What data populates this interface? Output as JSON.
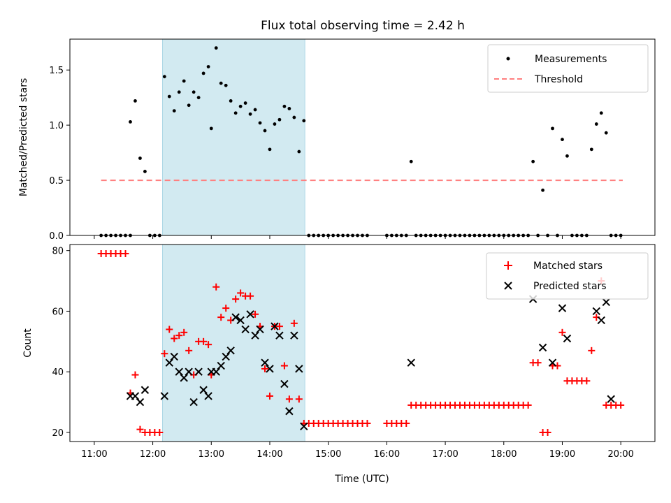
{
  "chart_data": [
    {
      "type": "scatter",
      "title": "Flux total observing time = 2.42 h",
      "ylabel": "Matched/Predicted stars",
      "xlabel": "",
      "ylim": [
        0,
        1.78
      ],
      "yticks": [
        "0.0",
        "0.5",
        "1.0",
        "1.5"
      ],
      "ytick_values": [
        0,
        0.5,
        1.0,
        1.5
      ],
      "highlight_span": [
        "12:10",
        "14:36"
      ],
      "highlight_color": "#add8e6",
      "legend": {
        "placement": "upper right",
        "entries": [
          "Measurements",
          "Threshold"
        ]
      },
      "threshold": {
        "name": "Threshold",
        "value": 0.5,
        "x_range": [
          "11:07",
          "20:02"
        ],
        "color": "#ff7f7f",
        "style": "dashed"
      },
      "series": [
        {
          "name": "Measurements",
          "color": "#000000",
          "marker": "dot",
          "points": [
            [
              "11:07",
              0
            ],
            [
              "11:12",
              0
            ],
            [
              "11:17",
              0
            ],
            [
              "11:22",
              0
            ],
            [
              "11:27",
              0
            ],
            [
              "11:32",
              0
            ],
            [
              "11:37",
              0
            ],
            [
              "11:37",
              1.03
            ],
            [
              "11:42",
              1.22
            ],
            [
              "11:47",
              0.7
            ],
            [
              "11:52",
              0.58
            ],
            [
              "11:57",
              0
            ],
            [
              "12:02",
              0
            ],
            [
              "12:07",
              0
            ],
            [
              "12:12",
              1.44
            ],
            [
              "12:17",
              1.26
            ],
            [
              "12:22",
              1.13
            ],
            [
              "12:27",
              1.3
            ],
            [
              "12:32",
              1.4
            ],
            [
              "12:37",
              1.18
            ],
            [
              "12:42",
              1.3
            ],
            [
              "12:47",
              1.25
            ],
            [
              "12:52",
              1.47
            ],
            [
              "12:57",
              1.53
            ],
            [
              "13:00",
              0.97
            ],
            [
              "13:05",
              1.7
            ],
            [
              "13:10",
              1.38
            ],
            [
              "13:15",
              1.36
            ],
            [
              "13:20",
              1.22
            ],
            [
              "13:25",
              1.11
            ],
            [
              "13:30",
              1.17
            ],
            [
              "13:35",
              1.2
            ],
            [
              "13:40",
              1.1
            ],
            [
              "13:45",
              1.14
            ],
            [
              "13:50",
              1.02
            ],
            [
              "13:55",
              0.95
            ],
            [
              "14:00",
              0.78
            ],
            [
              "14:05",
              1.01
            ],
            [
              "14:10",
              1.05
            ],
            [
              "14:15",
              1.17
            ],
            [
              "14:20",
              1.15
            ],
            [
              "14:25",
              1.07
            ],
            [
              "14:30",
              0.76
            ],
            [
              "14:35",
              1.04
            ],
            [
              "14:40",
              0
            ],
            [
              "14:45",
              0
            ],
            [
              "14:50",
              0
            ],
            [
              "14:55",
              0
            ],
            [
              "15:00",
              0
            ],
            [
              "15:05",
              0
            ],
            [
              "15:10",
              0
            ],
            [
              "15:15",
              0
            ],
            [
              "15:20",
              0
            ],
            [
              "15:25",
              0
            ],
            [
              "15:30",
              0
            ],
            [
              "15:35",
              0
            ],
            [
              "15:40",
              0
            ],
            [
              "16:00",
              0
            ],
            [
              "16:05",
              0
            ],
            [
              "16:10",
              0
            ],
            [
              "16:15",
              0
            ],
            [
              "16:20",
              0
            ],
            [
              "16:25",
              0.67
            ],
            [
              "16:30",
              0
            ],
            [
              "16:35",
              0
            ],
            [
              "16:40",
              0
            ],
            [
              "16:45",
              0
            ],
            [
              "16:50",
              0
            ],
            [
              "16:55",
              0
            ],
            [
              "17:00",
              0
            ],
            [
              "17:05",
              0
            ],
            [
              "17:10",
              0
            ],
            [
              "17:15",
              0
            ],
            [
              "17:20",
              0
            ],
            [
              "17:25",
              0
            ],
            [
              "17:30",
              0
            ],
            [
              "17:35",
              0
            ],
            [
              "17:40",
              0
            ],
            [
              "17:45",
              0
            ],
            [
              "17:50",
              0
            ],
            [
              "17:55",
              0
            ],
            [
              "18:00",
              0
            ],
            [
              "18:05",
              0
            ],
            [
              "18:10",
              0
            ],
            [
              "18:15",
              0
            ],
            [
              "18:20",
              0
            ],
            [
              "18:25",
              0
            ],
            [
              "18:30",
              0.67
            ],
            [
              "18:35",
              0
            ],
            [
              "18:40",
              0.41
            ],
            [
              "18:45",
              0
            ],
            [
              "18:50",
              0.97
            ],
            [
              "18:55",
              0
            ],
            [
              "19:00",
              0.87
            ],
            [
              "19:05",
              0.72
            ],
            [
              "19:10",
              0
            ],
            [
              "19:15",
              0
            ],
            [
              "19:20",
              0
            ],
            [
              "19:25",
              0
            ],
            [
              "19:30",
              0.78
            ],
            [
              "19:35",
              1.01
            ],
            [
              "19:40",
              1.11
            ],
            [
              "19:45",
              0.93
            ],
            [
              "19:50",
              0
            ],
            [
              "19:55",
              0
            ],
            [
              "20:00",
              0
            ]
          ]
        }
      ]
    },
    {
      "type": "scatter",
      "title": "",
      "xlabel": "Time (UTC)",
      "ylabel": "Count",
      "ylim": [
        17,
        82
      ],
      "yticks": [
        "20",
        "40",
        "60",
        "80"
      ],
      "ytick_values": [
        20,
        40,
        60,
        80
      ],
      "xlim": [
        "10:35",
        "20:35"
      ],
      "xticks": [
        "11:00",
        "12:00",
        "13:00",
        "14:00",
        "15:00",
        "16:00",
        "17:00",
        "18:00",
        "19:00",
        "20:00"
      ],
      "highlight_span": [
        "12:10",
        "14:36"
      ],
      "highlight_color": "#add8e6",
      "legend": {
        "placement": "upper right",
        "entries": [
          "Matched stars",
          "Predicted stars"
        ]
      },
      "series": [
        {
          "name": "Matched stars",
          "color": "#ff0000",
          "marker": "plus",
          "points": [
            [
              "11:07",
              79
            ],
            [
              "11:12",
              79
            ],
            [
              "11:17",
              79
            ],
            [
              "11:22",
              79
            ],
            [
              "11:27",
              79
            ],
            [
              "11:32",
              79
            ],
            [
              "11:37",
              33
            ],
            [
              "11:42",
              39
            ],
            [
              "11:47",
              21
            ],
            [
              "11:52",
              20
            ],
            [
              "11:57",
              20
            ],
            [
              "12:02",
              20
            ],
            [
              "12:07",
              20
            ],
            [
              "12:12",
              46
            ],
            [
              "12:17",
              54
            ],
            [
              "12:22",
              51
            ],
            [
              "12:27",
              52
            ],
            [
              "12:32",
              53
            ],
            [
              "12:37",
              47
            ],
            [
              "12:42",
              39
            ],
            [
              "12:47",
              50
            ],
            [
              "12:52",
              50
            ],
            [
              "12:57",
              49
            ],
            [
              "13:00",
              39
            ],
            [
              "13:05",
              68
            ],
            [
              "13:10",
              58
            ],
            [
              "13:15",
              61
            ],
            [
              "13:20",
              57
            ],
            [
              "13:25",
              64
            ],
            [
              "13:30",
              66
            ],
            [
              "13:35",
              65
            ],
            [
              "13:40",
              65
            ],
            [
              "13:45",
              59
            ],
            [
              "13:50",
              55
            ],
            [
              "13:55",
              41
            ],
            [
              "14:00",
              32
            ],
            [
              "14:05",
              55
            ],
            [
              "14:10",
              55
            ],
            [
              "14:15",
              42
            ],
            [
              "14:20",
              31
            ],
            [
              "14:25",
              56
            ],
            [
              "14:30",
              31
            ],
            [
              "14:35",
              23
            ],
            [
              "14:40",
              23
            ],
            [
              "14:45",
              23
            ],
            [
              "14:50",
              23
            ],
            [
              "14:55",
              23
            ],
            [
              "15:00",
              23
            ],
            [
              "15:05",
              23
            ],
            [
              "15:10",
              23
            ],
            [
              "15:15",
              23
            ],
            [
              "15:20",
              23
            ],
            [
              "15:25",
              23
            ],
            [
              "15:30",
              23
            ],
            [
              "15:35",
              23
            ],
            [
              "15:40",
              23
            ],
            [
              "16:00",
              23
            ],
            [
              "16:05",
              23
            ],
            [
              "16:10",
              23
            ],
            [
              "16:15",
              23
            ],
            [
              "16:20",
              23
            ],
            [
              "16:25",
              29
            ],
            [
              "16:30",
              29
            ],
            [
              "16:35",
              29
            ],
            [
              "16:40",
              29
            ],
            [
              "16:45",
              29
            ],
            [
              "16:50",
              29
            ],
            [
              "16:55",
              29
            ],
            [
              "17:00",
              29
            ],
            [
              "17:05",
              29
            ],
            [
              "17:10",
              29
            ],
            [
              "17:15",
              29
            ],
            [
              "17:20",
              29
            ],
            [
              "17:25",
              29
            ],
            [
              "17:30",
              29
            ],
            [
              "17:35",
              29
            ],
            [
              "17:40",
              29
            ],
            [
              "17:45",
              29
            ],
            [
              "17:50",
              29
            ],
            [
              "17:55",
              29
            ],
            [
              "18:00",
              29
            ],
            [
              "18:05",
              29
            ],
            [
              "18:10",
              29
            ],
            [
              "18:15",
              29
            ],
            [
              "18:20",
              29
            ],
            [
              "18:25",
              29
            ],
            [
              "18:30",
              43
            ],
            [
              "18:35",
              43
            ],
            [
              "18:40",
              20
            ],
            [
              "18:45",
              20
            ],
            [
              "18:50",
              42
            ],
            [
              "18:55",
              42
            ],
            [
              "19:00",
              53
            ],
            [
              "19:05",
              37
            ],
            [
              "19:10",
              37
            ],
            [
              "19:15",
              37
            ],
            [
              "19:20",
              37
            ],
            [
              "19:25",
              37
            ],
            [
              "19:30",
              47
            ],
            [
              "19:35",
              58
            ],
            [
              "19:40",
              70
            ],
            [
              "19:45",
              29
            ],
            [
              "19:50",
              29
            ],
            [
              "19:55",
              29
            ],
            [
              "20:00",
              29
            ]
          ]
        },
        {
          "name": "Predicted stars",
          "color": "#000000",
          "marker": "cross",
          "points": [
            [
              "11:37",
              32
            ],
            [
              "11:42",
              32
            ],
            [
              "11:47",
              30
            ],
            [
              "11:52",
              34
            ],
            [
              "12:12",
              32
            ],
            [
              "12:17",
              43
            ],
            [
              "12:22",
              45
            ],
            [
              "12:27",
              40
            ],
            [
              "12:32",
              38
            ],
            [
              "12:37",
              40
            ],
            [
              "12:42",
              30
            ],
            [
              "12:47",
              40
            ],
            [
              "12:52",
              34
            ],
            [
              "12:57",
              32
            ],
            [
              "13:00",
              40
            ],
            [
              "13:05",
              40
            ],
            [
              "13:10",
              42
            ],
            [
              "13:15",
              45
            ],
            [
              "13:20",
              47
            ],
            [
              "13:25",
              58
            ],
            [
              "13:30",
              57
            ],
            [
              "13:35",
              54
            ],
            [
              "13:40",
              59
            ],
            [
              "13:45",
              52
            ],
            [
              "13:50",
              54
            ],
            [
              "13:55",
              43
            ],
            [
              "14:00",
              41
            ],
            [
              "14:05",
              55
            ],
            [
              "14:10",
              52
            ],
            [
              "14:15",
              36
            ],
            [
              "14:20",
              27
            ],
            [
              "14:25",
              52
            ],
            [
              "14:30",
              41
            ],
            [
              "14:35",
              22
            ],
            [
              "16:25",
              43
            ],
            [
              "18:30",
              64
            ],
            [
              "18:40",
              48
            ],
            [
              "18:50",
              43
            ],
            [
              "19:00",
              61
            ],
            [
              "19:05",
              51
            ],
            [
              "19:35",
              60
            ],
            [
              "19:40",
              57
            ],
            [
              "19:45",
              63
            ],
            [
              "19:50",
              31
            ]
          ]
        }
      ]
    }
  ]
}
